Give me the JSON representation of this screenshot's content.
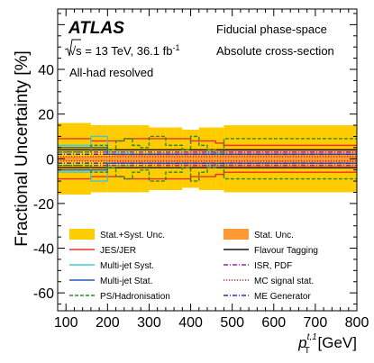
{
  "chart_data": {
    "type": "step",
    "experiment": "ATLAS",
    "energy_label": "√s = 13 TeV, 36.1 fb",
    "energy_label_sup": "-1",
    "selection_label": "All-had resolved",
    "region_label": "Fiducial phase-space",
    "observable_label": "Absolute cross-section",
    "xlabel_main": "p",
    "xlabel_sup": "t,1",
    "xlabel_sub": "T",
    "xlabel_unit": " [GeV]",
    "ylabel": "Fractional Uncertainty [%]",
    "xlim": [
      80,
      800
    ],
    "ylim": [
      -68,
      67
    ],
    "x_ticks": [
      100,
      200,
      300,
      400,
      500,
      600,
      700,
      800
    ],
    "y_ticks": [
      -60,
      -40,
      -20,
      0,
      20,
      40
    ],
    "bin_edges": [
      80,
      160,
      200,
      220,
      240,
      260,
      280,
      300,
      320,
      340,
      360,
      380,
      400,
      420,
      440,
      460,
      480,
      800
    ],
    "bands": [
      {
        "name": "Stat.+Syst. Unc.",
        "color": "#ffcc00",
        "values": [
          16,
          15,
          15,
          15,
          15,
          15,
          15,
          14,
          14,
          14,
          14,
          13,
          13,
          14,
          14,
          14,
          15
        ]
      },
      {
        "name": "Stat. Unc.",
        "color": "#ff9933",
        "values": [
          1.0,
          1.3,
          1.5,
          1.7,
          2.0,
          2.2,
          2.4,
          2.6,
          2.8,
          3.0,
          3.2,
          3.4,
          3.6,
          3.8,
          4.0,
          4.2,
          4.5
        ]
      }
    ],
    "series": [
      {
        "name": "JES/JER",
        "color": "#e8322e",
        "style": "solid",
        "values": [
          9,
          8,
          8,
          8,
          9,
          9,
          9,
          9,
          9,
          9,
          9,
          9,
          8,
          8,
          8,
          7,
          6
        ]
      },
      {
        "name": "Flavour Tagging",
        "color": "#111111",
        "style": "solid",
        "values": [
          4,
          4,
          4,
          4,
          4,
          4,
          4,
          4,
          4,
          4,
          4,
          4,
          4,
          4,
          4,
          4,
          4
        ]
      },
      {
        "name": "Multi-jet Syst.",
        "color": "#49c8c8",
        "style": "solid",
        "values": [
          6,
          10,
          3,
          3,
          3,
          2,
          2,
          2,
          2,
          2,
          2,
          2,
          2,
          2,
          3,
          3,
          2
        ]
      },
      {
        "name": "ISR, PDF",
        "color": "#a020a0",
        "style": "dashdot",
        "values": [
          3,
          3,
          3,
          3,
          3,
          3,
          3,
          3,
          3,
          3,
          3,
          3,
          3,
          3,
          3,
          3,
          3
        ]
      },
      {
        "name": "Multi-jet Stat.",
        "color": "#1f5fb5",
        "style": "solid",
        "values": [
          5,
          5,
          2,
          2,
          2,
          2,
          2,
          2,
          2,
          2,
          2,
          2,
          2,
          2,
          2,
          2,
          2
        ]
      },
      {
        "name": "MC signal stat.",
        "color": "#d02020",
        "style": "dotted",
        "values": [
          1,
          1,
          1,
          1,
          1,
          1,
          1,
          1,
          1,
          1,
          1,
          1,
          1,
          1,
          1,
          1,
          1
        ]
      },
      {
        "name": "PS/Hadronisation",
        "color": "#2a8a2a",
        "style": "dashed",
        "values": [
          3,
          6,
          4,
          8,
          9,
          6,
          5,
          10,
          10,
          6,
          6,
          4,
          10,
          6,
          4,
          2,
          9
        ]
      },
      {
        "name": "ME Generator",
        "color": "#2233aa",
        "style": "dashdot",
        "values": [
          2,
          2,
          2,
          2,
          2,
          2,
          2,
          2,
          2,
          2,
          2,
          2,
          2,
          2,
          2,
          2,
          2
        ]
      }
    ],
    "legend": [
      [
        "Stat.+Syst. Unc.",
        "Stat. Unc."
      ],
      [
        "JES/JER",
        "Flavour Tagging"
      ],
      [
        "Multi-jet Syst.",
        "ISR, PDF"
      ],
      [
        "Multi-jet Stat.",
        "MC signal stat."
      ],
      [
        "PS/Hadronisation",
        "ME Generator"
      ]
    ]
  }
}
